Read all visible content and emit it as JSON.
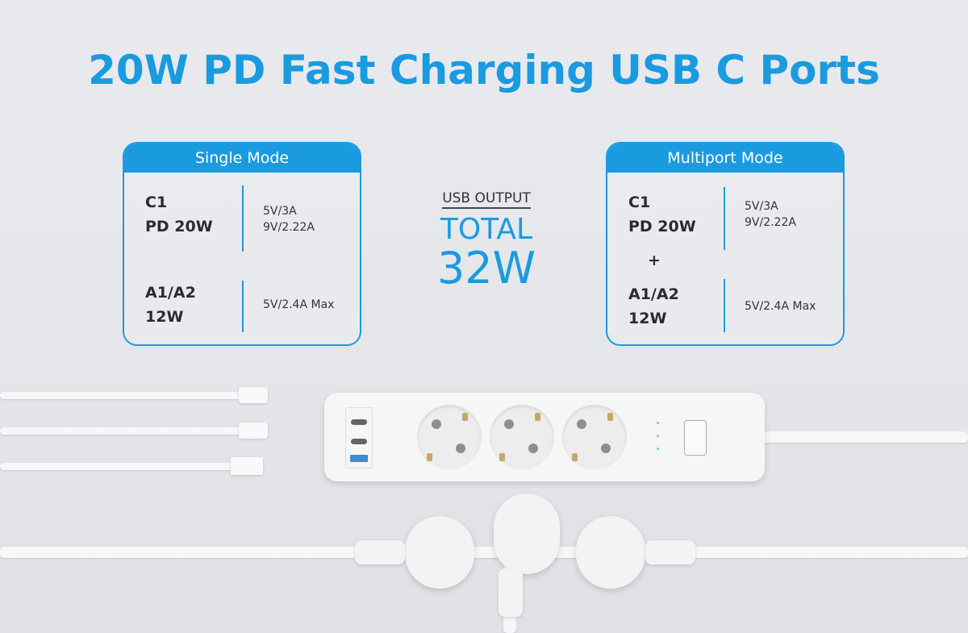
{
  "title": "20W PD Fast Charging USB C Ports",
  "single_mode": {
    "header": "Single Mode",
    "rows": [
      {
        "port": "C1",
        "power": "PD 20W",
        "specs": [
          "5V/3A",
          "9V/2.22A"
        ]
      },
      {
        "port": "A1/A2",
        "power": "12W",
        "specs": [
          "5V/2.4A Max"
        ]
      }
    ]
  },
  "multiport_mode": {
    "header": "Multiport Mode",
    "plus": "+",
    "rows": [
      {
        "port": "C1",
        "power": "PD 20W",
        "specs": [
          "5V/3A",
          "9V/2.22A"
        ]
      },
      {
        "port": "A1/A2",
        "power": "12W",
        "specs": [
          "5V/2.4A Max"
        ]
      }
    ]
  },
  "usb_output": {
    "label": "USB OUTPUT",
    "total": "TOTAL",
    "watts": "32W"
  },
  "colors": {
    "accent": "#1a9be0",
    "background": "#e6e7eb"
  }
}
